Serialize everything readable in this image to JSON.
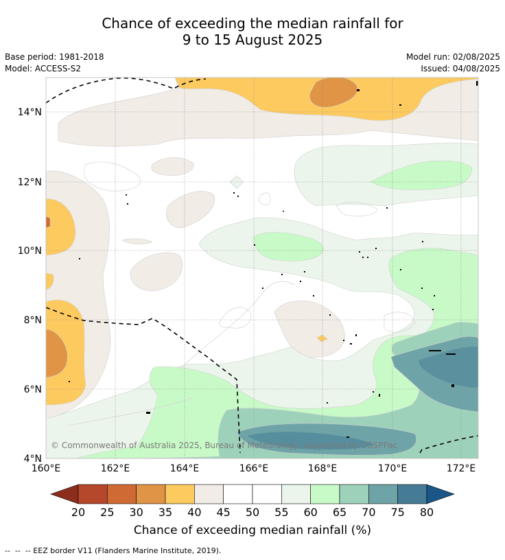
{
  "title": {
    "line1": "Chance of exceeding the median rainfall for",
    "line2": "9 to 15 August 2025"
  },
  "meta": {
    "base_period": "Base period: 1981-2018",
    "model": "Model: ACCESS-S2",
    "model_run": "Model run: 02/08/2025",
    "issued": "Issued: 04/08/2025"
  },
  "map": {
    "lon_ticks": [
      "160°E",
      "162°E",
      "164°E",
      "166°E",
      "168°E",
      "170°E",
      "172°E"
    ],
    "lat_ticks": [
      "14°N",
      "12°N",
      "10°N",
      "8°N",
      "6°N",
      "4°N"
    ],
    "copyright": "© Commonwealth of Australia 2025, Bureau of Meteorology, supported by COSPPac"
  },
  "colorbar": {
    "title": "Chance of exceeding median rainfall (%)",
    "ticks": [
      "20",
      "25",
      "30",
      "35",
      "40",
      "45",
      "50",
      "55",
      "60",
      "65",
      "70",
      "75",
      "80"
    ],
    "colors": {
      "under": "#8c2d1e",
      "c20_25": "#b5482a",
      "c25_30": "#cf6a35",
      "c30_35": "#e09445",
      "c35_40": "#fdca60",
      "c40_45": "#f1ece6",
      "c45_50": "#ffffff",
      "c50_55": "#ffffff",
      "c55_60": "#ebf5eb",
      "c60_65": "#c8fac8",
      "c65_70": "#9ed1ba",
      "c70_75": "#6ea4a7",
      "c75_80": "#457b95",
      "over": "#1a5687"
    }
  },
  "footer": "--  --  -- EEZ border V11 (Flanders Marine Institute, 2019)."
}
